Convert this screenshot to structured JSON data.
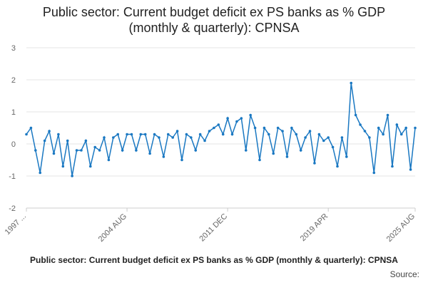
{
  "chart_data": {
    "type": "line",
    "title": "Public sector: Current budget deficit ex PS banks as % GDP (monthly & quarterly): CPNSA",
    "footer": "Public sector: Current budget deficit ex PS banks as % GDP (monthly & quarterly): CPNSA",
    "source": "Source:",
    "categories": [
      "1997 ...",
      null,
      null,
      null,
      null,
      null,
      null,
      null,
      null,
      null,
      null,
      null,
      null,
      null,
      null,
      null,
      null,
      null,
      null,
      null,
      null,
      null,
      "2004 AUG",
      null,
      null,
      null,
      null,
      null,
      null,
      null,
      null,
      null,
      null,
      null,
      null,
      null,
      null,
      null,
      null,
      null,
      null,
      null,
      null,
      null,
      "2011 DEC",
      null,
      null,
      null,
      null,
      null,
      null,
      null,
      null,
      null,
      null,
      null,
      null,
      null,
      null,
      null,
      null,
      null,
      null,
      null,
      null,
      null,
      "2019 APR",
      null,
      null,
      null,
      null,
      null,
      null,
      null,
      null,
      null,
      null,
      null,
      null,
      null,
      null,
      null,
      null,
      null,
      null,
      "2025 AUG"
    ],
    "series": [
      {
        "name": "CPNSA",
        "color": "#1a78c2",
        "values": [
          0.3,
          0.5,
          -0.2,
          -0.9,
          0.1,
          0.4,
          -0.3,
          0.3,
          -0.7,
          0.1,
          -1.0,
          -0.2,
          -0.2,
          0.1,
          -0.7,
          -0.1,
          -0.2,
          0.2,
          -0.5,
          0.2,
          0.3,
          -0.2,
          0.3,
          0.3,
          -0.2,
          0.3,
          0.3,
          -0.3,
          0.3,
          0.2,
          -0.4,
          0.3,
          0.2,
          0.4,
          -0.5,
          0.3,
          0.2,
          -0.2,
          0.3,
          0.1,
          0.4,
          0.5,
          0.6,
          0.3,
          0.8,
          0.3,
          0.7,
          0.8,
          -0.2,
          0.9,
          0.5,
          -0.5,
          0.5,
          0.3,
          -0.3,
          0.5,
          0.4,
          -0.4,
          0.5,
          0.3,
          -0.2,
          0.2,
          0.4,
          -0.6,
          0.3,
          0.1,
          0.2,
          -0.1,
          -0.7,
          0.2,
          -0.4,
          1.9,
          0.9,
          0.6,
          0.4,
          0.2,
          -0.9,
          0.5,
          0.3,
          0.9,
          -0.7,
          0.6,
          0.3,
          0.5,
          -0.8,
          0.5
        ]
      }
    ],
    "ylim": [
      -2,
      3
    ],
    "yticks": [
      -2,
      -1,
      0,
      1,
      2,
      3
    ],
    "grid": true
  }
}
